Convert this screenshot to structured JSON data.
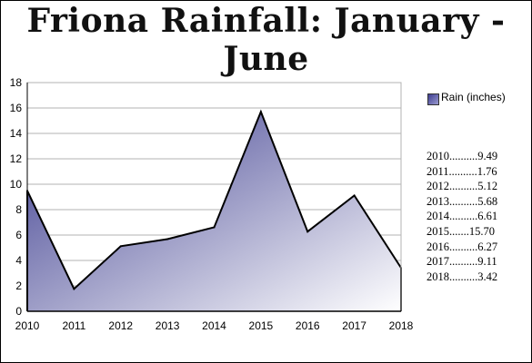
{
  "title": "Friona Rainfall: January - June",
  "chart_data": {
    "type": "area",
    "x": [
      "2010",
      "2011",
      "2012",
      "2013",
      "2014",
      "2015",
      "2016",
      "2017",
      "2018"
    ],
    "series": [
      {
        "name": "Rain (inches)",
        "values": [
          9.49,
          1.76,
          5.12,
          5.68,
          6.61,
          15.7,
          6.27,
          9.11,
          3.42
        ]
      }
    ],
    "ylim": [
      0,
      18
    ],
    "yticks": [
      0,
      2,
      4,
      6,
      8,
      10,
      12,
      14,
      16,
      18
    ],
    "grid": true,
    "legend": "right",
    "fill_gradient": [
      "#3d3d8f",
      "#ffffff"
    ],
    "line_color": "#000000",
    "grid_color": "#b3b3b3"
  },
  "data_list": [
    "2010..........9.49",
    "2011..........1.76",
    "2012..........5.12",
    "2013..........5.68",
    "2014..........6.61",
    "2015.......15.70",
    "2016..........6.27",
    "2017..........9.11",
    "2018..........3.42"
  ]
}
